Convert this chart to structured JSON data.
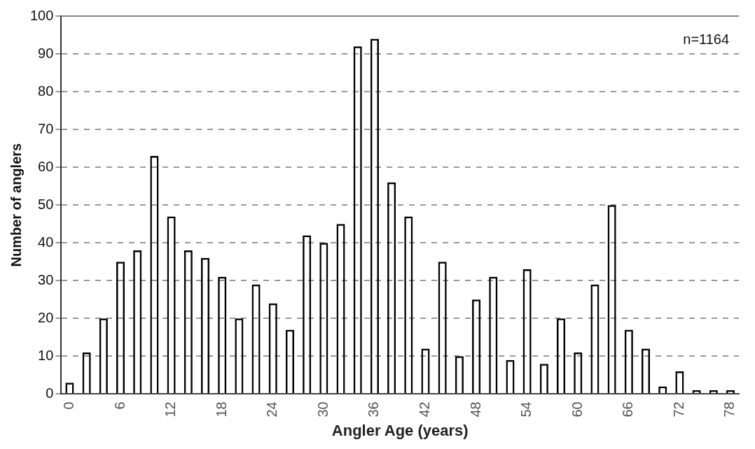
{
  "chart_data": {
    "type": "bar",
    "xlabel": "Angler Age (years)",
    "ylabel": "Number of anglers",
    "categories": [
      "0",
      null,
      null,
      "6",
      null,
      null,
      "12",
      null,
      null,
      "18",
      null,
      null,
      "24",
      null,
      null,
      "30",
      null,
      null,
      "36",
      null,
      null,
      "42",
      null,
      null,
      "48",
      null,
      null,
      "54",
      null,
      null,
      "60",
      null,
      null,
      "66",
      null,
      null,
      "72",
      null,
      null,
      "78"
    ],
    "values": [
      3,
      11,
      20,
      35,
      38,
      63,
      47,
      38,
      36,
      31,
      20,
      29,
      24,
      17,
      42,
      40,
      45,
      92,
      94,
      56,
      47,
      12,
      35,
      10,
      25,
      31,
      9,
      33,
      8,
      20,
      11,
      29,
      50,
      17,
      12,
      2,
      6,
      1,
      1,
      1
    ],
    "color": "#000000",
    "ylim": [
      0,
      100
    ],
    "yticks": [
      0,
      10,
      20,
      30,
      40,
      50,
      60,
      70,
      80,
      90,
      100
    ],
    "grid": "y",
    "annotations": [
      "n=1164"
    ]
  }
}
